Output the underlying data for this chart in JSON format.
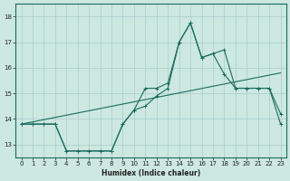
{
  "xlabel": "Humidex (Indice chaleur)",
  "bg_color": "#cce8e0",
  "line_color": "#1a6b5e",
  "grid_color": "#aacccc",
  "x_ticks": [
    0,
    1,
    2,
    3,
    4,
    5,
    6,
    7,
    8,
    9,
    10,
    11,
    12,
    13,
    14,
    15,
    16,
    17,
    18,
    19,
    20,
    21,
    22,
    23
  ],
  "y_ticks": [
    13,
    14,
    15,
    16,
    17,
    18
  ],
  "ylim": [
    12.5,
    18.5
  ],
  "xlim": [
    -0.5,
    23.5
  ],
  "line_wavy_x": [
    0,
    1,
    2,
    3,
    4,
    5,
    6,
    7,
    8,
    9,
    10,
    11,
    12,
    13,
    14,
    15,
    16,
    17,
    18,
    19,
    20,
    21,
    22,
    23
  ],
  "line_wavy_y": [
    13.8,
    13.8,
    13.8,
    13.8,
    12.75,
    12.75,
    12.75,
    12.75,
    12.75,
    13.8,
    14.35,
    15.2,
    15.2,
    15.4,
    17.0,
    17.75,
    16.4,
    16.55,
    15.75,
    15.2,
    15.2,
    15.2,
    15.2,
    13.8
  ],
  "line_flat_x": [
    0,
    1,
    2,
    3,
    4,
    5,
    6,
    7,
    8,
    9,
    10,
    11,
    12,
    13,
    14,
    15,
    16,
    17,
    18,
    19,
    20,
    21,
    22,
    23
  ],
  "line_flat_y": [
    13.8,
    13.8,
    13.8,
    13.8,
    12.75,
    12.75,
    12.75,
    12.75,
    12.75,
    13.8,
    14.35,
    14.5,
    14.9,
    15.2,
    17.0,
    17.75,
    16.4,
    16.55,
    16.7,
    15.2,
    15.2,
    15.2,
    15.2,
    14.2
  ],
  "line_trend_x": [
    0,
    23
  ],
  "line_trend_y": [
    13.8,
    15.8
  ]
}
